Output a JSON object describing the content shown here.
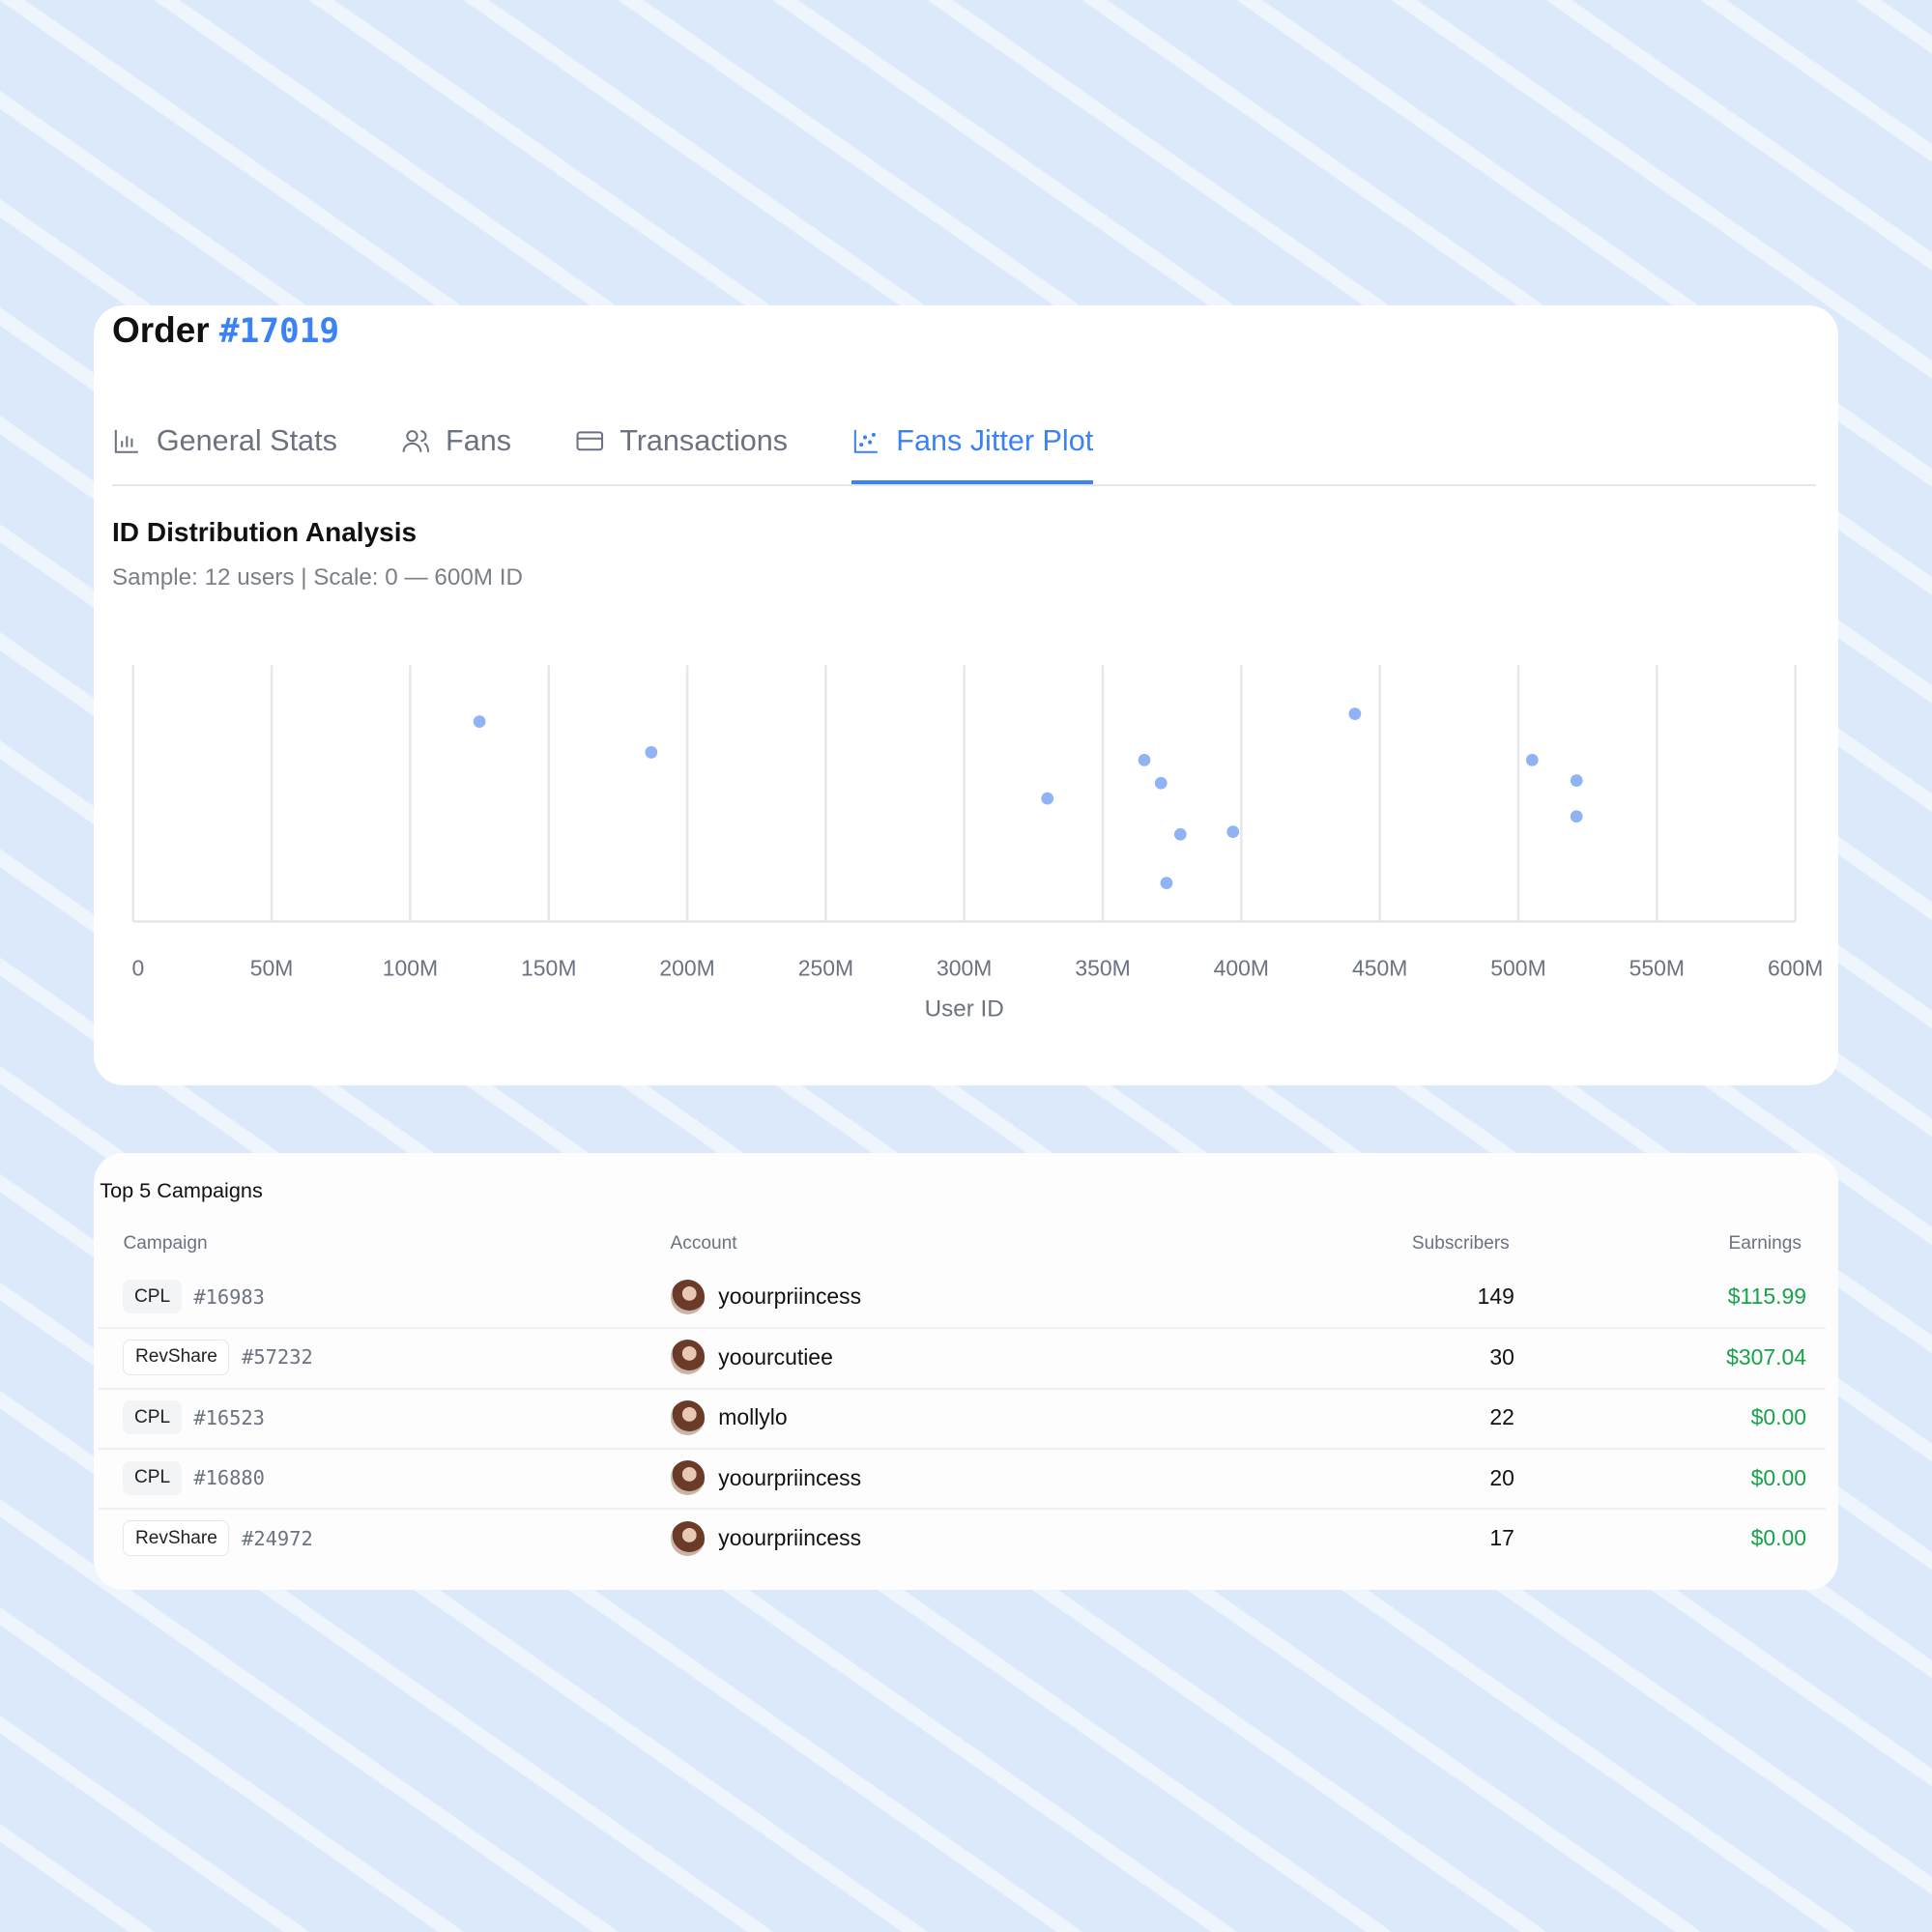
{
  "header": {
    "title": "Order",
    "order_number": "#17019"
  },
  "tabs": [
    {
      "label": "General Stats",
      "icon": "bar-chart-icon",
      "active": false
    },
    {
      "label": "Fans",
      "icon": "users-icon",
      "active": false
    },
    {
      "label": "Transactions",
      "icon": "credit-card-icon",
      "active": false
    },
    {
      "label": "Fans Jitter Plot",
      "icon": "scatter-chart-icon",
      "active": true
    }
  ],
  "colors": {
    "accent": "#3b82f6",
    "point": "#8fb3f5",
    "earnings": "#16a34a"
  },
  "chart_data": {
    "type": "scatter",
    "title": "ID Distribution Analysis",
    "subtitle": "Sample: 12 users | Scale: 0 — 600M ID",
    "xlabel": "User ID",
    "xlim": [
      0,
      600000000
    ],
    "xticks": [
      "0",
      "50M",
      "100M",
      "150M",
      "200M",
      "250M",
      "300M",
      "350M",
      "400M",
      "450M",
      "500M",
      "550M",
      "600M"
    ],
    "grid": "vertical",
    "points": [
      {
        "x": 125000000,
        "jitter": 0.78
      },
      {
        "x": 187000000,
        "jitter": 0.66
      },
      {
        "x": 330000000,
        "jitter": 0.48
      },
      {
        "x": 365000000,
        "jitter": 0.63
      },
      {
        "x": 371000000,
        "jitter": 0.54
      },
      {
        "x": 378000000,
        "jitter": 0.34
      },
      {
        "x": 373000000,
        "jitter": 0.15
      },
      {
        "x": 397000000,
        "jitter": 0.35
      },
      {
        "x": 441000000,
        "jitter": 0.81
      },
      {
        "x": 505000000,
        "jitter": 0.63
      },
      {
        "x": 521000000,
        "jitter": 0.55
      },
      {
        "x": 521000000,
        "jitter": 0.41
      }
    ]
  },
  "campaigns": {
    "title": "Top 5 Campaigns",
    "columns": [
      "Campaign",
      "Account",
      "Subscribers",
      "Earnings"
    ],
    "rows": [
      {
        "type": "CPL",
        "id": "#16983",
        "account": "yoourpriincess",
        "subscribers": "149",
        "earnings": "$115.99"
      },
      {
        "type": "RevShare",
        "id": "#57232",
        "account": "yoourcutiee",
        "subscribers": "30",
        "earnings": "$307.04"
      },
      {
        "type": "CPL",
        "id": "#16523",
        "account": "mollylo",
        "subscribers": "22",
        "earnings": "$0.00"
      },
      {
        "type": "CPL",
        "id": "#16880",
        "account": "yoourpriincess",
        "subscribers": "20",
        "earnings": "$0.00"
      },
      {
        "type": "RevShare",
        "id": "#24972",
        "account": "yoourpriincess",
        "subscribers": "17",
        "earnings": "$0.00"
      }
    ]
  }
}
